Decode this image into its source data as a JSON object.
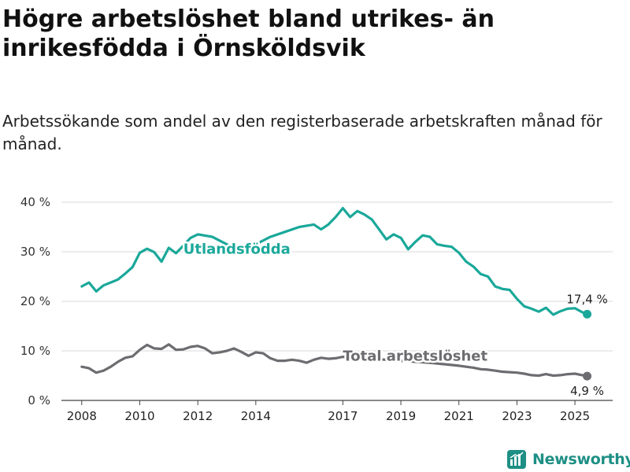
{
  "brand": {
    "name": "Newsworthy",
    "icon": "newsworthy-logo-icon",
    "color": "#1e8f85"
  },
  "colors": {
    "foreign_born": "#1aa89a",
    "total": "#6d6c70",
    "grid": "#d9d9d9",
    "axis": "#333333"
  },
  "chart_data": {
    "type": "line",
    "title": "Högre arbetslöshet bland utrikes- än inrikesfödda i Örnsköldsvik",
    "subtitle": "Arbetssökande som andel av den registerbaserade arbetskraften månad för månad.",
    "y_ticks": [
      "0 %",
      "10 %",
      "20 %",
      "30 %",
      "40 %"
    ],
    "y_tick_values": [
      0,
      10,
      20,
      30,
      40
    ],
    "ylim": [
      0,
      40
    ],
    "x_ticks": [
      "2008",
      "2010",
      "2012",
      "2014",
      "2017",
      "2019",
      "2021",
      "2023",
      "2025"
    ],
    "x_tick_values": [
      2008.0,
      2010.0,
      2012.0,
      2014.0,
      2017.0,
      2019.0,
      2021.0,
      2023.0,
      2025.0
    ],
    "xlim": [
      2007.3,
      2026.3
    ],
    "grid": "horizontal",
    "series": [
      {
        "name": "Utlandsfödda",
        "end_label": "17,4 %",
        "x": [
          2008.0,
          2008.25,
          2008.5,
          2008.75,
          2009.0,
          2009.25,
          2009.5,
          2009.75,
          2010.0,
          2010.25,
          2010.5,
          2010.75,
          2011.0,
          2011.25,
          2011.5,
          2011.75,
          2012.0,
          2012.5,
          2013.0,
          2013.5,
          2014.0,
          2014.5,
          2015.0,
          2015.5,
          2016.0,
          2016.25,
          2016.5,
          2016.75,
          2017.0,
          2017.25,
          2017.5,
          2017.75,
          2018.0,
          2018.25,
          2018.5,
          2018.75,
          2019.0,
          2019.25,
          2019.5,
          2019.75,
          2020.0,
          2020.25,
          2020.5,
          2020.75,
          2021.0,
          2021.25,
          2021.5,
          2021.75,
          2022.0,
          2022.25,
          2022.5,
          2022.75,
          2023.0,
          2023.25,
          2023.5,
          2023.75,
          2024.0,
          2024.25,
          2024.5,
          2024.75,
          2025.0,
          2025.25,
          2025.42
        ],
        "y": [
          23.0,
          23.8,
          22.0,
          23.2,
          23.8,
          24.4,
          25.6,
          26.9,
          29.8,
          30.6,
          29.9,
          28.0,
          30.8,
          29.7,
          31.2,
          32.8,
          33.5,
          33.0,
          31.5,
          30.0,
          31.5,
          33.0,
          34.0,
          35.0,
          35.5,
          34.5,
          35.5,
          37.0,
          38.8,
          37.0,
          38.2,
          37.5,
          36.5,
          34.5,
          32.5,
          33.5,
          32.8,
          30.5,
          32.0,
          33.3,
          33.0,
          31.5,
          31.2,
          31.0,
          29.8,
          28.0,
          27.0,
          25.5,
          25.0,
          23.0,
          22.5,
          22.3,
          20.5,
          19.0,
          18.5,
          17.9,
          18.7,
          17.3,
          18.0,
          18.5,
          18.6,
          17.8,
          17.4
        ]
      },
      {
        "name": "Total arbetslöshet",
        "end_label": "4,9 %",
        "x": [
          2008.0,
          2008.25,
          2008.5,
          2008.75,
          2009.0,
          2009.25,
          2009.5,
          2009.75,
          2010.0,
          2010.25,
          2010.5,
          2010.75,
          2011.0,
          2011.25,
          2011.5,
          2011.75,
          2012.0,
          2012.25,
          2012.5,
          2012.75,
          2013.0,
          2013.25,
          2013.5,
          2013.75,
          2014.0,
          2014.25,
          2014.5,
          2014.75,
          2015.0,
          2015.25,
          2015.5,
          2015.75,
          2016.0,
          2016.25,
          2016.5,
          2016.75,
          2017.0,
          2017.5,
          2018.0,
          2018.5,
          2019.0,
          2019.5,
          2020.0,
          2020.5,
          2021.0,
          2021.25,
          2021.5,
          2021.75,
          2022.0,
          2022.25,
          2022.5,
          2022.75,
          2023.0,
          2023.25,
          2023.5,
          2023.75,
          2024.0,
          2024.25,
          2024.5,
          2024.75,
          2025.0,
          2025.25,
          2025.42
        ],
        "y": [
          6.8,
          6.5,
          5.6,
          6.0,
          6.8,
          7.8,
          8.6,
          8.9,
          10.2,
          11.2,
          10.5,
          10.4,
          11.3,
          10.2,
          10.3,
          10.8,
          11.0,
          10.5,
          9.5,
          9.7,
          10.0,
          10.5,
          9.8,
          9.0,
          9.7,
          9.5,
          8.5,
          8.0,
          8.0,
          8.2,
          8.0,
          7.6,
          8.2,
          8.6,
          8.4,
          8.5,
          8.8,
          8.5,
          8.4,
          8.2,
          8.0,
          7.8,
          7.6,
          7.3,
          7.0,
          6.8,
          6.6,
          6.3,
          6.2,
          6.0,
          5.8,
          5.7,
          5.6,
          5.4,
          5.1,
          5.0,
          5.3,
          5.0,
          5.1,
          5.3,
          5.4,
          5.1,
          4.9
        ]
      }
    ]
  }
}
